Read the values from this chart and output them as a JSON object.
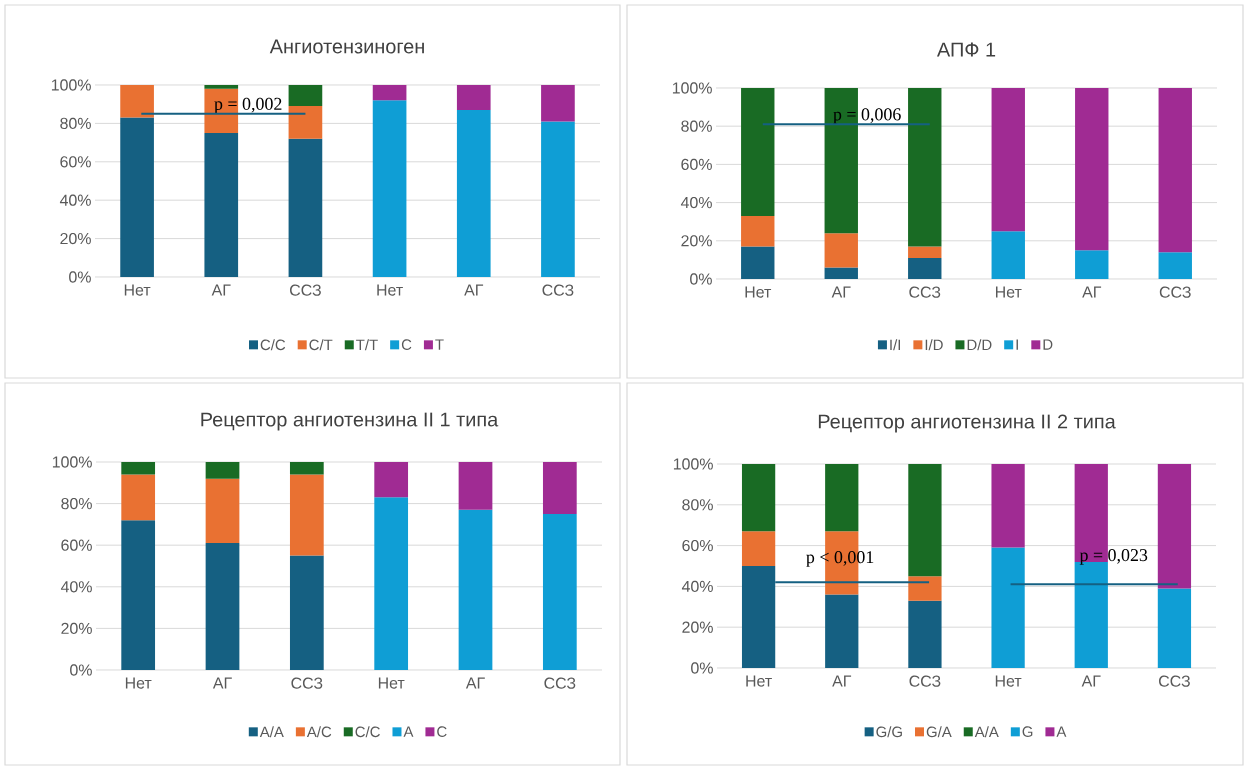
{
  "chart_data": [
    {
      "type": "bar",
      "title": "Ангиотензиноген",
      "categories": [
        "Нет",
        "АГ",
        "ССЗ",
        "Нет",
        "АГ",
        "ССЗ"
      ],
      "stacked": true,
      "ylim": [
        0,
        100
      ],
      "yticks": [
        {
          "value": 0,
          "label": "0%"
        },
        {
          "value": 20,
          "label": "20%"
        },
        {
          "value": 40,
          "label": "40%"
        },
        {
          "value": 60,
          "label": "60%"
        },
        {
          "value": 80,
          "label": "80%"
        },
        {
          "value": 100,
          "label": "100%"
        }
      ],
      "grid": "y",
      "legend": "bottom",
      "annotations": [
        "p = 0,002"
      ],
      "series": [
        {
          "name": "C/C",
          "color": "#156082",
          "values": [
            83,
            75,
            72,
            null,
            null,
            null
          ]
        },
        {
          "name": "C/T",
          "color": "#e97132",
          "values": [
            17,
            23,
            17,
            null,
            null,
            null
          ]
        },
        {
          "name": "T/T",
          "color": "#196b24",
          "values": [
            0,
            2,
            11,
            null,
            null,
            null
          ]
        },
        {
          "name": "C",
          "color": "#0f9ed5",
          "values": [
            null,
            null,
            null,
            92,
            87,
            81
          ]
        },
        {
          "name": "T",
          "color": "#a02b93",
          "values": [
            null,
            null,
            null,
            8,
            13,
            19
          ]
        }
      ]
    },
    {
      "type": "bar",
      "title": "АПФ 1",
      "categories": [
        "Нет",
        "АГ",
        "ССЗ",
        "Нет",
        "АГ",
        "ССЗ"
      ],
      "stacked": true,
      "ylim": [
        0,
        100
      ],
      "yticks": [
        {
          "value": 0,
          "label": "0%"
        },
        {
          "value": 20,
          "label": "20%"
        },
        {
          "value": 40,
          "label": "40%"
        },
        {
          "value": 60,
          "label": "60%"
        },
        {
          "value": 80,
          "label": "80%"
        },
        {
          "value": 100,
          "label": "100%"
        }
      ],
      "grid": "y",
      "legend": "bottom",
      "annotations": [
        "p = 0,006"
      ],
      "series": [
        {
          "name": "I/I",
          "color": "#156082",
          "values": [
            17,
            6,
            11,
            null,
            null,
            null
          ]
        },
        {
          "name": "I/D",
          "color": "#e97132",
          "values": [
            16,
            18,
            6,
            null,
            null,
            null
          ]
        },
        {
          "name": "D/D",
          "color": "#196b24",
          "values": [
            67,
            76,
            83,
            null,
            null,
            null
          ]
        },
        {
          "name": "I",
          "color": "#0f9ed5",
          "values": [
            null,
            null,
            null,
            25,
            15,
            14
          ]
        },
        {
          "name": "D",
          "color": "#a02b93",
          "values": [
            null,
            null,
            null,
            75,
            85,
            86
          ]
        }
      ]
    },
    {
      "type": "bar",
      "title": "Рецептор ангиотензина II 1 типа",
      "categories": [
        "Нет",
        "АГ",
        "ССЗ",
        "Нет",
        "АГ",
        "ССЗ"
      ],
      "stacked": true,
      "ylim": [
        0,
        100
      ],
      "yticks": [
        {
          "value": 0,
          "label": "0%"
        },
        {
          "value": 20,
          "label": "20%"
        },
        {
          "value": 40,
          "label": "40%"
        },
        {
          "value": 60,
          "label": "60%"
        },
        {
          "value": 80,
          "label": "80%"
        },
        {
          "value": 100,
          "label": "100%"
        }
      ],
      "grid": "y",
      "legend": "bottom",
      "series": [
        {
          "name": "A/A",
          "color": "#156082",
          "values": [
            72,
            61,
            55,
            null,
            null,
            null
          ]
        },
        {
          "name": "A/C",
          "color": "#e97132",
          "values": [
            22,
            31,
            39,
            null,
            null,
            null
          ]
        },
        {
          "name": "C/C",
          "color": "#196b24",
          "values": [
            6,
            8,
            6,
            null,
            null,
            null
          ]
        },
        {
          "name": "A",
          "color": "#0f9ed5",
          "values": [
            null,
            null,
            null,
            83,
            77,
            75
          ]
        },
        {
          "name": "C",
          "color": "#a02b93",
          "values": [
            null,
            null,
            null,
            17,
            23,
            25
          ]
        }
      ]
    },
    {
      "type": "bar",
      "title": "Рецептор ангиотензина II 2 типа",
      "categories": [
        "Нет",
        "АГ",
        "ССЗ",
        "Нет",
        "АГ",
        "ССЗ"
      ],
      "stacked": true,
      "ylim": [
        0,
        100
      ],
      "yticks": [
        {
          "value": 0,
          "label": "0%"
        },
        {
          "value": 20,
          "label": "20%"
        },
        {
          "value": 40,
          "label": "40%"
        },
        {
          "value": 60,
          "label": "60%"
        },
        {
          "value": 80,
          "label": "80%"
        },
        {
          "value": 100,
          "label": "100%"
        }
      ],
      "grid": "y",
      "legend": "bottom",
      "annotations": [
        "p < 0,001",
        "p = 0,023"
      ],
      "series": [
        {
          "name": "G/G",
          "color": "#156082",
          "values": [
            50,
            36,
            33,
            null,
            null,
            null
          ]
        },
        {
          "name": "G/A",
          "color": "#e97132",
          "values": [
            17,
            31,
            12,
            null,
            null,
            null
          ]
        },
        {
          "name": "A/A",
          "color": "#196b24",
          "values": [
            33,
            33,
            55,
            null,
            null,
            null
          ]
        },
        {
          "name": "G",
          "color": "#0f9ed5",
          "values": [
            null,
            null,
            null,
            59,
            52,
            39
          ]
        },
        {
          "name": "A",
          "color": "#a02b93",
          "values": [
            null,
            null,
            null,
            41,
            48,
            61
          ]
        }
      ]
    }
  ]
}
